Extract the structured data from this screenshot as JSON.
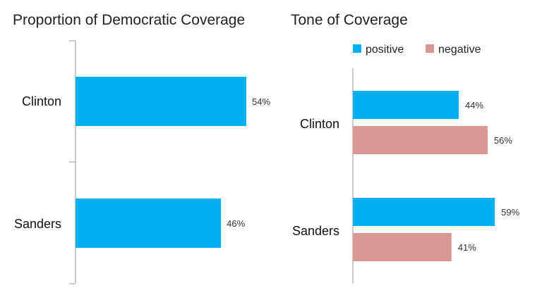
{
  "chart_data": [
    {
      "type": "bar",
      "orientation": "horizontal",
      "title": "Proportion of Democratic Coverage",
      "categories": [
        "Clinton",
        "Sanders"
      ],
      "values": [
        54,
        46
      ],
      "value_labels": [
        "54%",
        "46%"
      ],
      "unit": "%",
      "xlim": [
        0,
        65
      ],
      "grid": false,
      "legend": "none",
      "colors": [
        "#00b0f0"
      ]
    },
    {
      "type": "bar",
      "orientation": "horizontal",
      "title": "Tone of Coverage",
      "categories": [
        "Clinton",
        "Sanders"
      ],
      "series": [
        {
          "name": "positive",
          "values": [
            44,
            59
          ],
          "value_labels": [
            "44%",
            "59%"
          ],
          "color": "#00b0f0"
        },
        {
          "name": "negative",
          "values": [
            56,
            41
          ],
          "value_labels": [
            "56%",
            "41%"
          ],
          "color": "#d99694"
        }
      ],
      "unit": "%",
      "xlim": [
        0,
        65
      ],
      "grid": false,
      "legend": "top"
    }
  ]
}
